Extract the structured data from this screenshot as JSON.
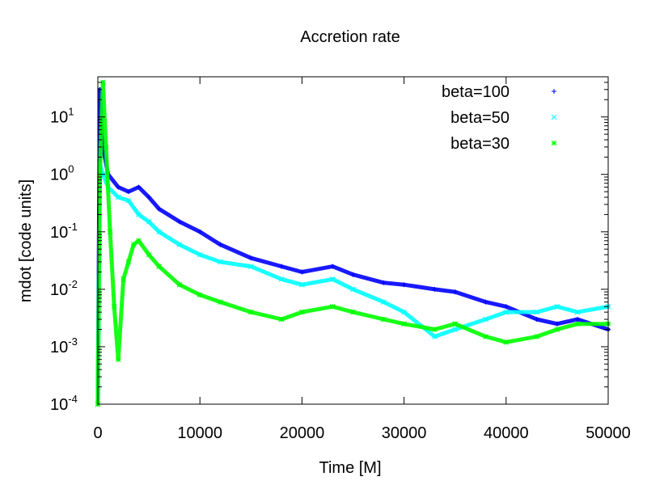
{
  "chart_data": {
    "type": "scatter",
    "title": "Accretion rate",
    "xlabel": "Time [M]",
    "ylabel": "mdot [code units]",
    "xlim": [
      0,
      50000
    ],
    "ylim": [
      0.0001,
      50
    ],
    "yscale": "log",
    "x_ticks": [
      {
        "value": 0,
        "label": "0"
      },
      {
        "value": 10000,
        "label": "10000"
      },
      {
        "value": 20000,
        "label": "20000"
      },
      {
        "value": 30000,
        "label": "30000"
      },
      {
        "value": 40000,
        "label": "40000"
      },
      {
        "value": 50000,
        "label": "50000"
      }
    ],
    "y_ticks": [
      {
        "value": 0.0001,
        "base": "10",
        "exp": "-4"
      },
      {
        "value": 0.001,
        "base": "10",
        "exp": "-3"
      },
      {
        "value": 0.01,
        "base": "10",
        "exp": "-2"
      },
      {
        "value": 0.1,
        "base": "10",
        "exp": "-1"
      },
      {
        "value": 1,
        "base": "10",
        "exp": "0"
      },
      {
        "value": 10,
        "base": "10",
        "exp": "1"
      }
    ],
    "legend_position": "top-right",
    "series": [
      {
        "name": "beta=100",
        "color": "#0000ff",
        "marker": "+",
        "x": [
          0,
          200,
          500,
          1000,
          2000,
          3000,
          4000,
          5000,
          6000,
          8000,
          10000,
          12000,
          15000,
          18000,
          20000,
          23000,
          25000,
          28000,
          30000,
          33000,
          35000,
          38000,
          40000,
          43000,
          45000,
          47000,
          50000
        ],
        "y": [
          0.0001,
          30,
          3,
          1.0,
          0.6,
          0.5,
          0.6,
          0.4,
          0.25,
          0.15,
          0.1,
          0.06,
          0.035,
          0.025,
          0.02,
          0.025,
          0.018,
          0.013,
          0.012,
          0.01,
          0.009,
          0.006,
          0.005,
          0.003,
          0.0025,
          0.003,
          0.002
        ]
      },
      {
        "name": "beta=50",
        "color": "#00ffff",
        "marker": "x",
        "x": [
          0,
          200,
          500,
          1000,
          2000,
          3000,
          4000,
          5000,
          6000,
          8000,
          10000,
          12000,
          15000,
          18000,
          20000,
          23000,
          25000,
          28000,
          30000,
          33000,
          35000,
          38000,
          40000,
          43000,
          45000,
          47000,
          50000
        ],
        "y": [
          0.0001,
          1.5,
          1.0,
          0.6,
          0.4,
          0.35,
          0.2,
          0.15,
          0.1,
          0.06,
          0.04,
          0.03,
          0.025,
          0.015,
          0.012,
          0.015,
          0.01,
          0.006,
          0.004,
          0.0015,
          0.002,
          0.003,
          0.004,
          0.004,
          0.005,
          0.004,
          0.005
        ]
      },
      {
        "name": "beta=30",
        "color": "#00ff00",
        "marker": "*",
        "x": [
          0,
          200,
          500,
          800,
          1200,
          1600,
          2000,
          2500,
          3000,
          3500,
          4000,
          5000,
          6000,
          8000,
          10000,
          12000,
          15000,
          18000,
          20000,
          23000,
          25000,
          28000,
          30000,
          33000,
          35000,
          38000,
          40000,
          43000,
          45000,
          47000,
          50000
        ],
        "y": [
          0.0001,
          1.0,
          40,
          3,
          0.1,
          0.005,
          0.0006,
          0.015,
          0.03,
          0.06,
          0.07,
          0.04,
          0.025,
          0.012,
          0.008,
          0.006,
          0.004,
          0.003,
          0.004,
          0.005,
          0.004,
          0.003,
          0.0025,
          0.002,
          0.0025,
          0.0015,
          0.0012,
          0.0015,
          0.002,
          0.0025,
          0.0025
        ]
      }
    ]
  }
}
